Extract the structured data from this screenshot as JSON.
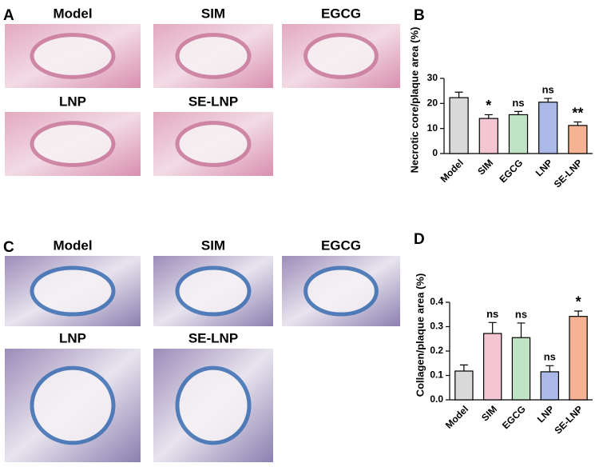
{
  "panels": {
    "A": {
      "label": "A",
      "images": [
        "Model",
        "SIM",
        "EGCG",
        "LNP",
        "SE-LNP"
      ]
    },
    "C": {
      "label": "C",
      "images": [
        "Model",
        "SIM",
        "EGCG",
        "LNP",
        "SE-LNP"
      ]
    }
  },
  "chart_data": [
    {
      "type": "bar",
      "panel_label": "B",
      "y_label": "Necrotic core/plaque area (%)",
      "categories": [
        "Model",
        "SIM",
        "EGCG",
        "LNP",
        "SE-LNP"
      ],
      "values": [
        22.3,
        14,
        15.5,
        20.5,
        11.2
      ],
      "errors": [
        2.2,
        1.5,
        1.3,
        1.5,
        1.4
      ],
      "annotations": [
        null,
        "*",
        "ns",
        "ns",
        "**"
      ],
      "colors": [
        "#d9d9d9",
        "#f4c6d3",
        "#bfe3c4",
        "#aab9e8",
        "#f6b394"
      ],
      "ylim": [
        0,
        30
      ],
      "yticks": [
        0,
        10,
        20,
        30
      ]
    },
    {
      "type": "bar",
      "panel_label": "D",
      "y_label": "Collagen/plaque area (%)",
      "categories": [
        "Model",
        "SIM",
        "EGCG",
        "LNP",
        "SE-LNP"
      ],
      "values": [
        0.118,
        0.272,
        0.255,
        0.115,
        0.342
      ],
      "errors": [
        0.025,
        0.045,
        0.06,
        0.025,
        0.022
      ],
      "annotations": [
        null,
        "ns",
        "ns",
        "ns",
        "*"
      ],
      "colors": [
        "#d9d9d9",
        "#f4c6d3",
        "#bfe3c4",
        "#aab9e8",
        "#f6b394"
      ],
      "ylim": [
        0,
        0.4
      ],
      "yticks": [
        {
          "value": 0,
          "label": "0.0"
        },
        0.1,
        0.2,
        0.3,
        0.4
      ]
    }
  ]
}
